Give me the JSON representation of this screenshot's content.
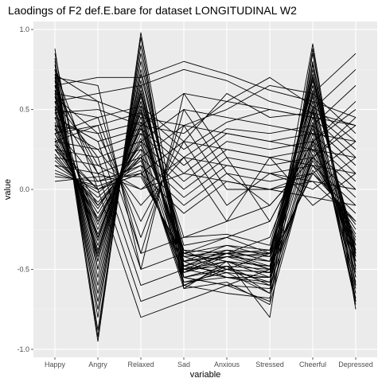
{
  "chart_data": {
    "type": "line",
    "title": "Laodings of F2 def.E.bare for dataset LONGITUDINAL W2",
    "xlabel": "variable",
    "ylabel": "value",
    "categories": [
      "Happy",
      "Angry",
      "Relaxed",
      "Sad",
      "Anxious",
      "Stressed",
      "Cheerful",
      "Depressed"
    ],
    "ylim": [
      -1.05,
      1.05
    ],
    "yticks": [
      1.0,
      0.5,
      0.0,
      -0.5,
      -1.0
    ],
    "ytick_labels": [
      "1.0",
      "0.5",
      "0.0",
      "-0.5",
      "-1.0"
    ],
    "grid": true,
    "legend": "none",
    "colors": {
      "panel": "#ebebeb",
      "grid_major": "#ffffff",
      "grid_minor": "#f4f4f4",
      "line": "#000000"
    },
    "series": [
      {
        "values": [
          0.88,
          -0.92,
          0.98,
          -0.48,
          -0.52,
          -0.55,
          0.91,
          -0.7
        ]
      },
      {
        "values": [
          0.82,
          -0.95,
          0.95,
          -0.62,
          -0.45,
          -0.8,
          0.88,
          -0.75
        ]
      },
      {
        "values": [
          0.78,
          -0.88,
          0.9,
          -0.55,
          -0.6,
          -0.7,
          0.85,
          -0.6
        ]
      },
      {
        "values": [
          0.75,
          -0.8,
          0.85,
          -0.5,
          -0.48,
          -0.65,
          0.8,
          -0.55
        ]
      },
      {
        "values": [
          0.72,
          -0.75,
          0.8,
          -0.45,
          -0.55,
          -0.6,
          0.78,
          -0.5
        ]
      },
      {
        "values": [
          0.7,
          -0.7,
          0.75,
          -0.42,
          -0.5,
          -0.58,
          0.75,
          -0.48
        ]
      },
      {
        "values": [
          0.68,
          -0.65,
          0.72,
          -0.4,
          -0.45,
          -0.52,
          0.72,
          -0.45
        ]
      },
      {
        "values": [
          0.65,
          -0.6,
          0.68,
          -0.52,
          -0.4,
          -0.5,
          0.7,
          -0.42
        ]
      },
      {
        "values": [
          0.62,
          -0.55,
          0.65,
          -0.48,
          -0.38,
          -0.45,
          0.68,
          -0.4
        ]
      },
      {
        "values": [
          0.6,
          -0.5,
          0.62,
          -0.45,
          -0.42,
          -0.4,
          0.65,
          -0.38
        ]
      },
      {
        "values": [
          0.58,
          -0.45,
          0.6,
          -0.4,
          -0.35,
          -0.42,
          0.62,
          -0.35
        ]
      },
      {
        "values": [
          0.55,
          -0.42,
          0.58,
          -0.38,
          -0.4,
          -0.38,
          0.6,
          -0.55
        ]
      },
      {
        "values": [
          0.52,
          -0.4,
          0.55,
          -0.5,
          -0.45,
          -0.48,
          0.58,
          -0.6
        ]
      },
      {
        "values": [
          0.5,
          -0.38,
          0.52,
          -0.55,
          -0.5,
          -0.52,
          0.55,
          -0.65
        ]
      },
      {
        "values": [
          0.48,
          -0.35,
          0.5,
          -0.58,
          -0.55,
          -0.55,
          0.52,
          -0.7
        ]
      },
      {
        "values": [
          0.45,
          -0.32,
          0.48,
          -0.6,
          -0.48,
          -0.5,
          0.5,
          -0.72
        ]
      },
      {
        "values": [
          0.42,
          -0.3,
          0.45,
          -0.52,
          -0.42,
          -0.45,
          0.48,
          -0.68
        ]
      },
      {
        "values": [
          0.4,
          -0.28,
          0.42,
          -0.48,
          -0.38,
          -0.4,
          0.45,
          -0.62
        ]
      },
      {
        "values": [
          0.38,
          -0.25,
          0.4,
          -0.45,
          -0.35,
          -0.38,
          0.42,
          -0.58
        ]
      },
      {
        "values": [
          0.35,
          -0.22,
          0.38,
          -0.42,
          -0.4,
          -0.42,
          0.4,
          -0.52
        ]
      },
      {
        "values": [
          0.32,
          -0.2,
          0.35,
          -0.4,
          -0.45,
          -0.48,
          0.38,
          -0.48
        ]
      },
      {
        "values": [
          0.3,
          -0.18,
          0.32,
          -0.38,
          -0.5,
          -0.52,
          0.35,
          -0.45
        ]
      },
      {
        "values": [
          0.28,
          -0.15,
          0.3,
          -0.5,
          -0.55,
          -0.58,
          0.32,
          -0.42
        ]
      },
      {
        "values": [
          0.25,
          -0.12,
          0.28,
          -0.55,
          -0.6,
          -0.62,
          0.3,
          -0.4
        ]
      },
      {
        "values": [
          0.22,
          -0.1,
          0.25,
          -0.6,
          -0.65,
          -0.68,
          0.28,
          -0.38
        ]
      },
      {
        "values": [
          0.2,
          -0.08,
          0.22,
          -0.62,
          -0.58,
          -0.72,
          0.25,
          -0.35
        ]
      },
      {
        "values": [
          0.18,
          -0.05,
          0.2,
          -0.58,
          -0.52,
          -0.65,
          0.22,
          -0.32
        ]
      },
      {
        "values": [
          0.15,
          -0.02,
          0.18,
          -0.55,
          -0.48,
          -0.6,
          0.2,
          -0.3
        ]
      },
      {
        "values": [
          0.12,
          0.0,
          0.15,
          -0.52,
          -0.45,
          -0.55,
          0.18,
          -0.28
        ]
      },
      {
        "values": [
          0.1,
          0.02,
          0.12,
          -0.48,
          -0.42,
          -0.5,
          0.15,
          -0.25
        ]
      },
      {
        "values": [
          0.08,
          0.05,
          0.1,
          -0.45,
          -0.4,
          -0.48,
          0.12,
          -0.22
        ]
      },
      {
        "values": [
          0.05,
          0.08,
          0.08,
          -0.42,
          -0.38,
          -0.45,
          0.1,
          -0.2
        ]
      },
      {
        "values": [
          0.85,
          -0.5,
          0.6,
          -0.35,
          -0.3,
          -0.4,
          0.7,
          -0.45
        ]
      },
      {
        "values": [
          0.8,
          -0.45,
          0.55,
          -0.3,
          -0.28,
          -0.35,
          0.65,
          -0.4
        ]
      },
      {
        "values": [
          0.65,
          0.7,
          0.7,
          0.8,
          0.72,
          0.62,
          0.55,
          0.45
        ]
      },
      {
        "values": [
          0.55,
          0.6,
          0.65,
          0.75,
          0.68,
          0.55,
          0.48,
          0.4
        ]
      },
      {
        "values": [
          0.72,
          0.55,
          0.45,
          0.4,
          0.5,
          0.65,
          0.6,
          0.35
        ]
      },
      {
        "values": [
          0.48,
          0.5,
          0.4,
          0.35,
          0.55,
          0.7,
          0.52,
          0.3
        ]
      },
      {
        "values": [
          0.35,
          0.45,
          0.52,
          0.3,
          0.6,
          0.45,
          0.48,
          0.25
        ]
      },
      {
        "values": [
          0.3,
          0.4,
          0.48,
          0.25,
          0.42,
          0.5,
          0.45,
          0.2
        ]
      },
      {
        "values": [
          0.58,
          0.35,
          0.42,
          0.2,
          0.38,
          0.35,
          0.4,
          0.15
        ]
      },
      {
        "values": [
          0.45,
          0.3,
          0.38,
          0.15,
          0.35,
          0.3,
          0.35,
          0.1
        ]
      },
      {
        "values": [
          0.4,
          0.25,
          0.35,
          0.1,
          0.3,
          0.25,
          0.3,
          0.05
        ]
      },
      {
        "values": [
          0.25,
          0.2,
          0.3,
          0.05,
          0.25,
          0.2,
          0.25,
          0.0
        ]
      },
      {
        "values": [
          0.62,
          0.15,
          0.25,
          0.0,
          0.2,
          0.15,
          0.2,
          -0.05
        ]
      },
      {
        "values": [
          0.52,
          0.1,
          0.2,
          -0.05,
          0.15,
          0.1,
          0.15,
          -0.1
        ]
      },
      {
        "values": [
          0.38,
          0.05,
          0.15,
          -0.1,
          0.1,
          0.05,
          0.1,
          -0.15
        ]
      },
      {
        "values": [
          0.28,
          0.0,
          0.1,
          -0.15,
          0.05,
          0.0,
          0.05,
          -0.2
        ]
      },
      {
        "values": [
          0.7,
          0.65,
          -0.5,
          0.6,
          0.55,
          0.5,
          0.45,
          0.4
        ]
      },
      {
        "values": [
          0.6,
          0.55,
          -0.4,
          0.5,
          0.45,
          0.4,
          0.35,
          0.3
        ]
      },
      {
        "values": [
          0.5,
          0.45,
          -0.3,
          0.4,
          0.35,
          0.3,
          0.25,
          0.2
        ]
      },
      {
        "values": [
          0.4,
          0.35,
          -0.2,
          0.3,
          0.25,
          0.2,
          0.15,
          0.1
        ]
      },
      {
        "values": [
          0.3,
          0.25,
          -0.1,
          0.2,
          0.15,
          0.1,
          0.05,
          0.0
        ]
      },
      {
        "values": [
          0.2,
          0.15,
          0.0,
          0.1,
          0.05,
          0.0,
          -0.05,
          -0.1
        ]
      },
      {
        "values": [
          0.55,
          -0.3,
          0.4,
          0.6,
          0.2,
          -0.2,
          0.3,
          0.5
        ]
      },
      {
        "values": [
          0.45,
          -0.2,
          0.3,
          0.5,
          0.1,
          -0.1,
          0.2,
          0.4
        ]
      },
      {
        "values": [
          0.35,
          -0.1,
          0.2,
          0.4,
          0.0,
          0.0,
          0.1,
          0.3
        ]
      },
      {
        "values": [
          0.25,
          0.0,
          0.1,
          0.3,
          -0.1,
          0.1,
          0.0,
          0.2
        ]
      },
      {
        "values": [
          0.15,
          0.1,
          0.0,
          0.2,
          -0.2,
          0.2,
          -0.1,
          0.1
        ]
      },
      {
        "values": [
          0.75,
          0.0,
          -0.8,
          -0.7,
          -0.6,
          -0.5,
          0.6,
          0.85
        ]
      },
      {
        "values": [
          0.65,
          0.1,
          -0.7,
          -0.6,
          -0.5,
          -0.4,
          0.5,
          0.75
        ]
      },
      {
        "values": [
          0.55,
          0.2,
          -0.6,
          -0.5,
          -0.4,
          -0.3,
          0.4,
          0.65
        ]
      },
      {
        "values": [
          0.45,
          0.3,
          -0.5,
          -0.4,
          -0.3,
          -0.2,
          0.3,
          0.55
        ]
      },
      {
        "values": [
          0.35,
          0.4,
          -0.4,
          -0.3,
          -0.2,
          -0.1,
          0.2,
          0.45
        ]
      }
    ]
  }
}
